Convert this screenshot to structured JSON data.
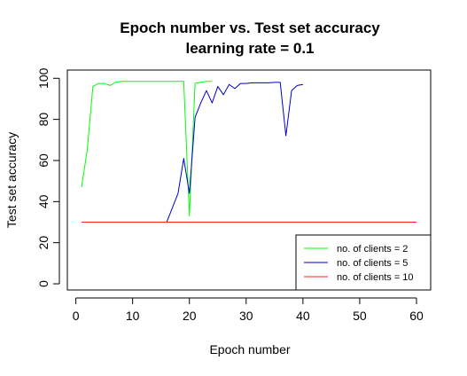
{
  "chart_data": {
    "type": "line",
    "title": "Epoch number vs. Test set accuracy",
    "subtitle": "learning rate = 0.1",
    "xlabel": "Epoch number",
    "ylabel": "Test set accuracy",
    "xlim": [
      -1.5,
      62.5
    ],
    "ylim": [
      -3,
      104
    ],
    "xticks": [
      0,
      10,
      20,
      30,
      40,
      50,
      60
    ],
    "yticks": [
      0,
      20,
      40,
      60,
      80,
      100
    ],
    "grid": false,
    "legend_position": "bottom-right",
    "series": [
      {
        "name": "no. of clients = 2",
        "color": "#00ff00",
        "x": [
          1,
          2,
          3,
          4,
          5,
          6,
          7,
          8,
          9,
          10,
          11,
          12,
          13,
          14,
          15,
          16,
          17,
          18,
          19,
          20,
          21,
          22,
          23,
          24
        ],
        "y": [
          47,
          65,
          96,
          97.5,
          97.5,
          96.5,
          98,
          98.5,
          98.5,
          98.5,
          98.5,
          98.5,
          98.5,
          98.5,
          98.5,
          98.5,
          98.5,
          98.5,
          98.5,
          33,
          97.5,
          98,
          98.5,
          98.5
        ]
      },
      {
        "name": "no. of clients = 5",
        "color": "#0000cd",
        "x": [
          1,
          2,
          3,
          4,
          5,
          6,
          7,
          8,
          9,
          10,
          11,
          12,
          13,
          14,
          15,
          16,
          17,
          18,
          19,
          20,
          21,
          22,
          23,
          24,
          25,
          26,
          27,
          28,
          29,
          30,
          31,
          32,
          33,
          34,
          35,
          36,
          37,
          38,
          39,
          40
        ],
        "y": [
          30,
          30,
          30,
          30,
          30,
          30,
          30,
          30,
          30,
          30,
          30,
          30,
          30,
          30,
          30,
          30,
          37,
          44,
          61,
          44,
          81,
          88,
          94,
          88,
          96,
          92,
          97,
          95,
          97.5,
          97.5,
          97.8,
          97.8,
          97.8,
          97.8,
          98,
          98,
          72,
          94,
          96.5,
          97
        ]
      },
      {
        "name": "no. of clients = 10",
        "color": "#ff2222",
        "x": [
          1,
          60
        ],
        "y": [
          30,
          30
        ]
      }
    ]
  }
}
